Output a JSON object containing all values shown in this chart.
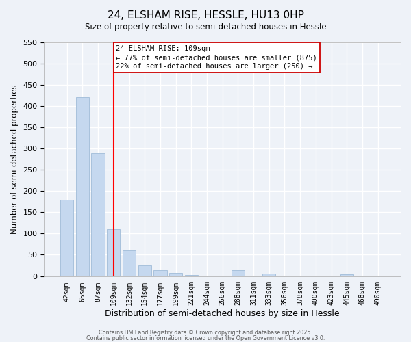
{
  "title": "24, ELSHAM RISE, HESSLE, HU13 0HP",
  "subtitle": "Size of property relative to semi-detached houses in Hessle",
  "xlabel": "Distribution of semi-detached houses by size in Hessle",
  "ylabel": "Number of semi-detached properties",
  "categories": [
    "42sqm",
    "65sqm",
    "87sqm",
    "109sqm",
    "132sqm",
    "154sqm",
    "177sqm",
    "199sqm",
    "221sqm",
    "244sqm",
    "266sqm",
    "288sqm",
    "311sqm",
    "333sqm",
    "356sqm",
    "378sqm",
    "400sqm",
    "423sqm",
    "445sqm",
    "468sqm",
    "490sqm"
  ],
  "values": [
    180,
    420,
    288,
    110,
    60,
    25,
    14,
    7,
    2,
    1,
    1,
    14,
    1,
    6,
    1,
    1,
    0,
    0,
    4,
    1,
    1
  ],
  "bar_color": "#c5d8ef",
  "bar_edge_color": "#a0bcd8",
  "ref_line_index": 3,
  "ref_line_color": "red",
  "annotation_line1": "24 ELSHAM RISE: 109sqm",
  "annotation_line2": "← 77% of semi-detached houses are smaller (875)",
  "annotation_line3": "22% of semi-detached houses are larger (250) →",
  "annotation_box_color": "white",
  "annotation_box_edge_color": "#cc0000",
  "ylim": [
    0,
    550
  ],
  "yticks": [
    0,
    50,
    100,
    150,
    200,
    250,
    300,
    350,
    400,
    450,
    500,
    550
  ],
  "footer1": "Contains HM Land Registry data © Crown copyright and database right 2025.",
  "footer2": "Contains public sector information licensed under the Open Government Licence v3.0.",
  "background_color": "#eef2f8",
  "grid_color": "#ffffff"
}
